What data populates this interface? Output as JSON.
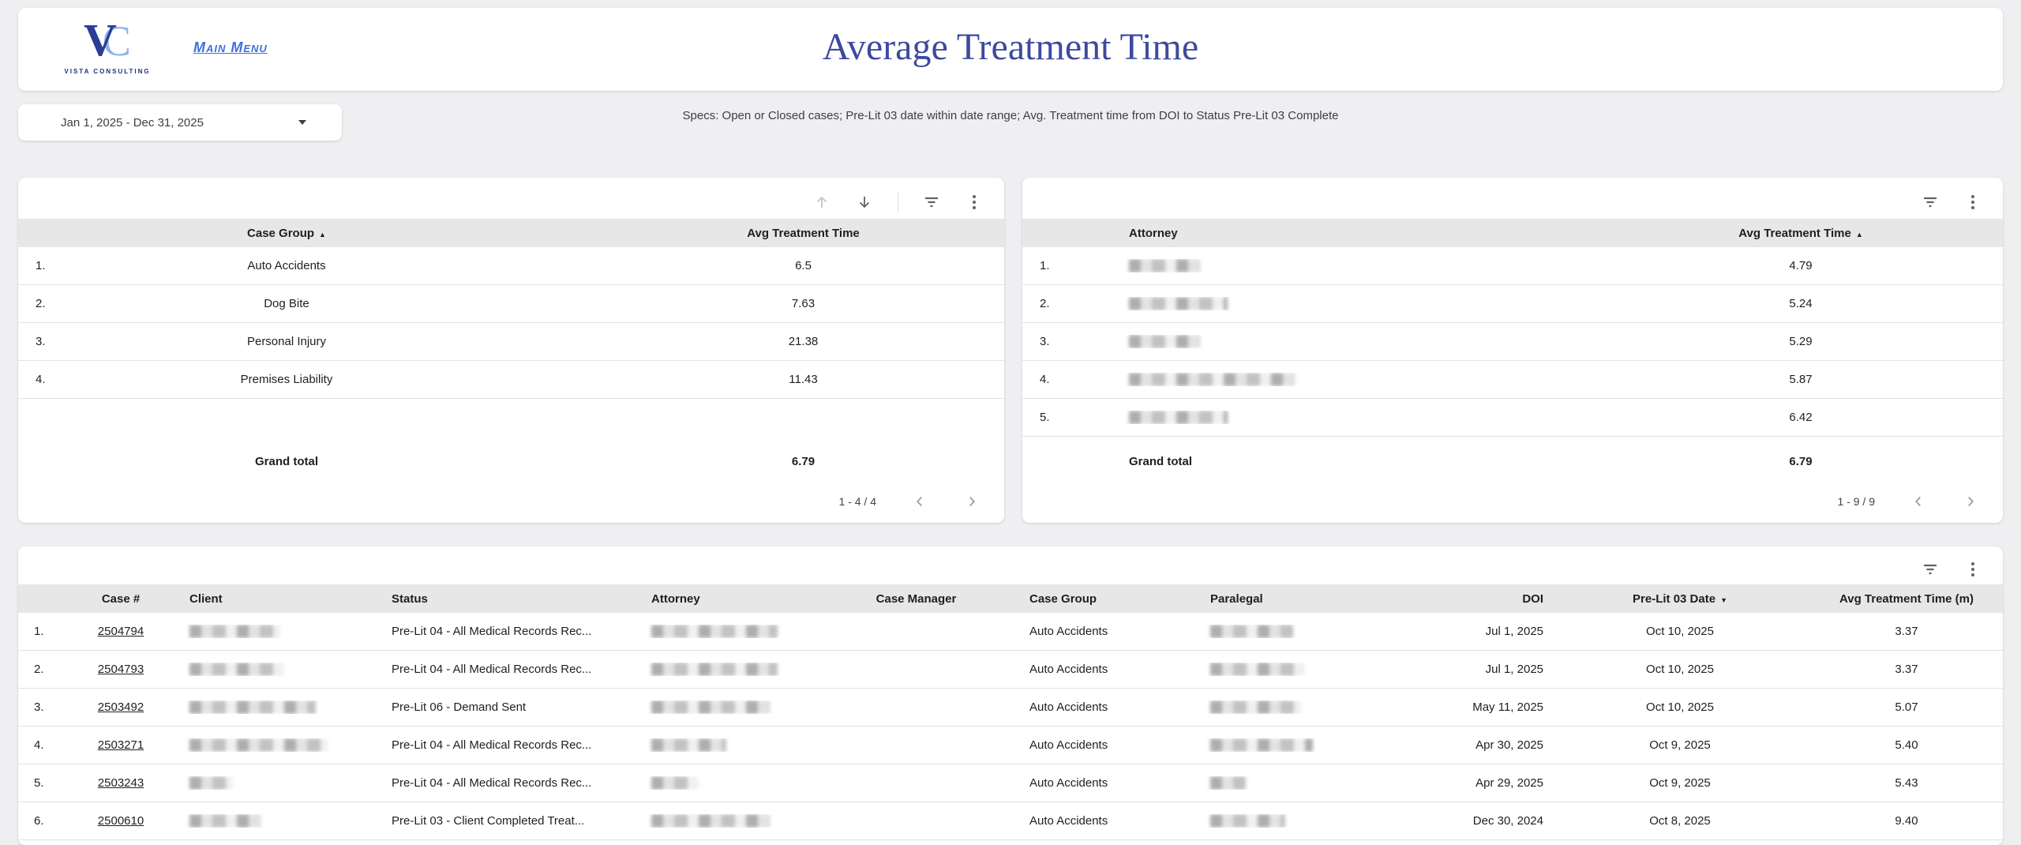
{
  "header": {
    "title": "Average Treatment Time",
    "menu_link": "Main Menu",
    "logo": {
      "letter_v": "V",
      "letter_c": "C",
      "text": "VISTA CONSULTING"
    }
  },
  "filters": {
    "date_range": "Jan 1, 2025 - Dec 31, 2025"
  },
  "specs": "Specs:  Open or Closed cases;  Pre-Lit 03 date within date range;  Avg. Treatment time from DOI to Status Pre-Lit 03 Complete",
  "case_group_table": {
    "columns": [
      "Case Group",
      "Avg Treatment Time"
    ],
    "sort_indicator": "▲",
    "rows": [
      {
        "n": "1.",
        "group": "Auto Accidents",
        "value": "6.5"
      },
      {
        "n": "2.",
        "group": "Dog Bite",
        "value": "7.63"
      },
      {
        "n": "3.",
        "group": "Personal Injury",
        "value": "21.38"
      },
      {
        "n": "4.",
        "group": "Premises Liability",
        "value": "11.43"
      }
    ],
    "grand_total_label": "Grand total",
    "grand_total": "6.79",
    "pagination": "1 - 4 / 4"
  },
  "attorney_table": {
    "columns": [
      "Attorney",
      "Avg Treatment Time"
    ],
    "sort_indicator": "▲",
    "rows": [
      {
        "n": "1.",
        "redact_w": 90,
        "value": "4.79"
      },
      {
        "n": "2.",
        "redact_w": 125,
        "value": "5.24"
      },
      {
        "n": "3.",
        "redact_w": 90,
        "value": "5.29"
      },
      {
        "n": "4.",
        "redact_w": 210,
        "value": "5.87"
      },
      {
        "n": "5.",
        "redact_w": 125,
        "value": "6.42"
      }
    ],
    "grand_total_label": "Grand total",
    "grand_total": "6.79",
    "pagination": "1 - 9 / 9"
  },
  "cases_table": {
    "columns": [
      "Case #",
      "Client",
      "Status",
      "Attorney",
      "Case Manager",
      "Case Group",
      "Paralegal",
      "DOI",
      "Pre-Lit 03 Date",
      "Avg Treatment Time (m)"
    ],
    "sort_indicator": "▼",
    "rows": [
      {
        "n": "1.",
        "case": "2504794",
        "client_w": 115,
        "status": "Pre-Lit 04 - All Medical Records Rec...",
        "attorney_w": 160,
        "case_manager": "",
        "group": "Auto Accidents",
        "paralegal_w": 105,
        "doi": "Jul 1, 2025",
        "prelit03": "Oct 10, 2025",
        "avg": "3.37"
      },
      {
        "n": "2.",
        "case": "2504793",
        "client_w": 120,
        "status": "Pre-Lit 04 - All Medical Records Rec...",
        "attorney_w": 160,
        "case_manager": "",
        "group": "Auto Accidents",
        "paralegal_w": 120,
        "doi": "Jul 1, 2025",
        "prelit03": "Oct 10, 2025",
        "avg": "3.37"
      },
      {
        "n": "3.",
        "case": "2503492",
        "client_w": 160,
        "status": "Pre-Lit 06 - Demand Sent",
        "attorney_w": 150,
        "case_manager": "",
        "group": "Auto Accidents",
        "paralegal_w": 115,
        "doi": "May 11, 2025",
        "prelit03": "Oct 10, 2025",
        "avg": "5.07"
      },
      {
        "n": "4.",
        "case": "2503271",
        "client_w": 175,
        "status": "Pre-Lit 04 - All Medical Records Rec...",
        "attorney_w": 95,
        "case_manager": "",
        "group": "Auto Accidents",
        "paralegal_w": 130,
        "doi": "Apr 30, 2025",
        "prelit03": "Oct 9, 2025",
        "avg": "5.40"
      },
      {
        "n": "5.",
        "case": "2503243",
        "client_w": 55,
        "status": "Pre-Lit 04 - All Medical Records Rec...",
        "attorney_w": 60,
        "case_manager": "",
        "group": "Auto Accidents",
        "paralegal_w": 45,
        "doi": "Apr 29, 2025",
        "prelit03": "Oct 9, 2025",
        "avg": "5.43"
      },
      {
        "n": "6.",
        "case": "2500610",
        "client_w": 90,
        "status": "Pre-Lit 03 - Client Completed Treat...",
        "attorney_w": 150,
        "case_manager": "",
        "group": "Auto Accidents",
        "paralegal_w": 95,
        "doi": "Dec 30, 2024",
        "prelit03": "Oct 8, 2025",
        "avg": "9.40"
      }
    ]
  }
}
